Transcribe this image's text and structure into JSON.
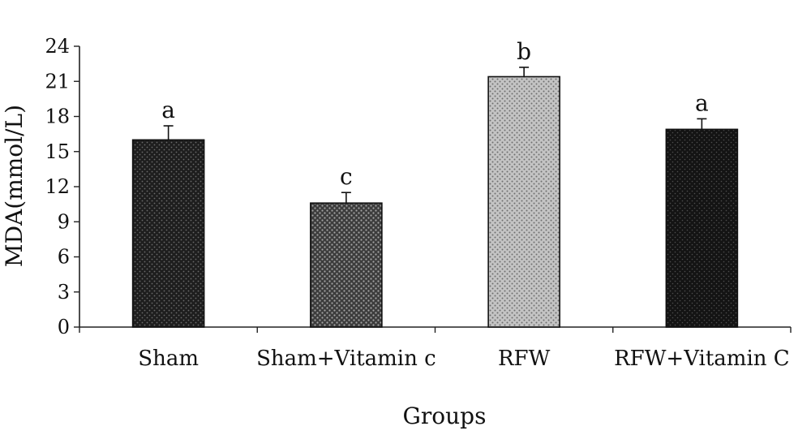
{
  "chart_data": {
    "type": "bar",
    "xlabel": "Groups",
    "ylabel": "MDA(mmol/L)",
    "ylim": [
      0,
      24
    ],
    "yticks": [
      0,
      3,
      6,
      9,
      12,
      15,
      18,
      21,
      24
    ],
    "grid": false,
    "legend": "none",
    "categories": [
      "Sham",
      "Sham+Vitamin c",
      "RFW",
      "RFW+Vitamin C"
    ],
    "values": [
      16.0,
      10.6,
      21.4,
      16.9
    ],
    "errors": [
      1.2,
      0.9,
      0.8,
      0.9
    ],
    "significance_letters": [
      "a",
      "c",
      "b",
      "a"
    ],
    "bar_colors": [
      "#2b2b2b",
      "#6a6a6a",
      "#a8a8a8",
      "#1f1f1f"
    ]
  }
}
